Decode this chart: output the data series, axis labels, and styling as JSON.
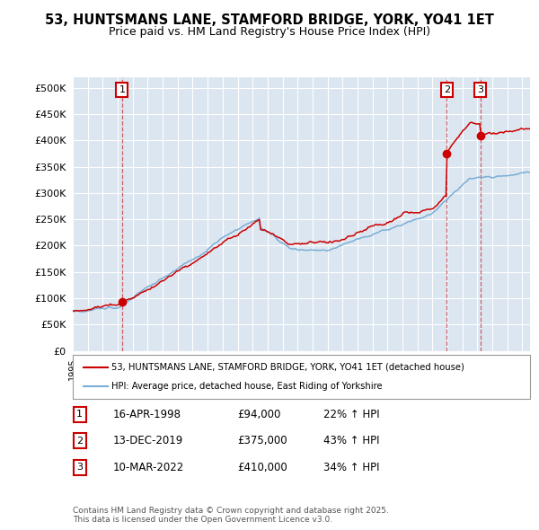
{
  "title1": "53, HUNTSMANS LANE, STAMFORD BRIDGE, YORK, YO41 1ET",
  "title2": "Price paid vs. HM Land Registry's House Price Index (HPI)",
  "legend1": "53, HUNTSMANS LANE, STAMFORD BRIDGE, YORK, YO41 1ET (detached house)",
  "legend2": "HPI: Average price, detached house, East Riding of Yorkshire",
  "sale_color": "#cc0000",
  "hpi_color": "#7aaed6",
  "purchase_dates": [
    1998.29,
    2019.95,
    2022.19
  ],
  "purchase_prices": [
    94000,
    375000,
    410000
  ],
  "purchase_labels": [
    "1",
    "2",
    "3"
  ],
  "table_rows": [
    {
      "num": "1",
      "date": "16-APR-1998",
      "price": "£94,000",
      "hpi": "22% ↑ HPI"
    },
    {
      "num": "2",
      "date": "13-DEC-2019",
      "price": "£375,000",
      "hpi": "43% ↑ HPI"
    },
    {
      "num": "3",
      "date": "10-MAR-2022",
      "price": "£410,000",
      "hpi": "34% ↑ HPI"
    }
  ],
  "footnote": "Contains HM Land Registry data © Crown copyright and database right 2025.\nThis data is licensed under the Open Government Licence v3.0.",
  "ylim": [
    0,
    520000
  ],
  "yticks": [
    0,
    50000,
    100000,
    150000,
    200000,
    250000,
    300000,
    350000,
    400000,
    450000,
    500000
  ],
  "background_color": "#dce6f1",
  "xlim_start": 1995,
  "xlim_end": 2025.5
}
